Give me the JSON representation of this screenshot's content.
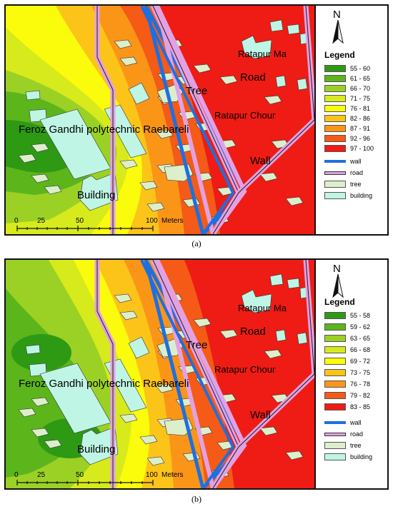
{
  "captions": [
    "(a)",
    "(b)"
  ],
  "panels": [
    {
      "north_label": "N",
      "legend_title": "Legend",
      "noise_classes": [
        {
          "label": "55 - 60",
          "color": "#2e9a14"
        },
        {
          "label": "61 - 65",
          "color": "#5db51c"
        },
        {
          "label": "66 - 70",
          "color": "#9bd125"
        },
        {
          "label": "71 - 75",
          "color": "#d7ea1c"
        },
        {
          "label": "76 - 81",
          "color": "#fbfb0c"
        },
        {
          "label": "82 - 86",
          "color": "#fcc419"
        },
        {
          "label": "87 - 91",
          "color": "#fb9518"
        },
        {
          "label": "92 - 96",
          "color": "#f55a16"
        },
        {
          "label": "97 - 100",
          "color": "#ee1c14"
        }
      ],
      "feature_legend": [
        {
          "label": "wall",
          "kind": "line",
          "color": "#1e6fe0"
        },
        {
          "label": "road",
          "kind": "line",
          "color": "#e3a1e3"
        },
        {
          "label": "tree",
          "kind": "box",
          "color": "#ddeecb"
        },
        {
          "label": "building",
          "kind": "box",
          "color": "#bff5e4"
        }
      ],
      "map_labels": {
        "ratapur_marg": "Ratapur Ma",
        "road": "Road",
        "tree": "Tree",
        "ratapur_chouraha": "Ratapur Chour",
        "polytechnic": "Feroz Gandhi polytechnic Raebareli",
        "wall": "Wall",
        "building": "Building"
      },
      "scale_bar": {
        "ticks": [
          "0",
          "25",
          "50",
          "100"
        ],
        "unit": "Meters"
      }
    },
    {
      "north_label": "N",
      "legend_title": "Legend",
      "noise_classes": [
        {
          "label": "55 - 58",
          "color": "#2e9a14"
        },
        {
          "label": "59 - 62",
          "color": "#5db51c"
        },
        {
          "label": "63 - 65",
          "color": "#9bd125"
        },
        {
          "label": "66 - 68",
          "color": "#d7ea1c"
        },
        {
          "label": "69 - 72",
          "color": "#fbfb0c"
        },
        {
          "label": "73 - 75",
          "color": "#fcc419"
        },
        {
          "label": "76 - 78",
          "color": "#fb9518"
        },
        {
          "label": "79 - 82",
          "color": "#f55a16"
        },
        {
          "label": "83 - 85",
          "color": "#ee1c14"
        }
      ],
      "feature_legend": [
        {
          "label": "wall",
          "kind": "line",
          "color": "#1e6fe0"
        },
        {
          "label": "road",
          "kind": "line",
          "color": "#e3a1e3"
        },
        {
          "label": "tree",
          "kind": "box",
          "color": "#ddeecb"
        },
        {
          "label": "building",
          "kind": "box",
          "color": "#bff5e4"
        }
      ],
      "map_labels": {
        "ratapur_marg": "Ratapur Ma",
        "road": "Road",
        "tree": "Tree",
        "ratapur_chouraha": "Ratapur Chour",
        "polytechnic": "Feroz Gandhi polytechnic Raebareli",
        "wall": "Wall",
        "building": "Building"
      },
      "scale_bar": {
        "ticks": [
          "0",
          "25",
          "50",
          "100"
        ],
        "unit": "Meters"
      }
    }
  ]
}
